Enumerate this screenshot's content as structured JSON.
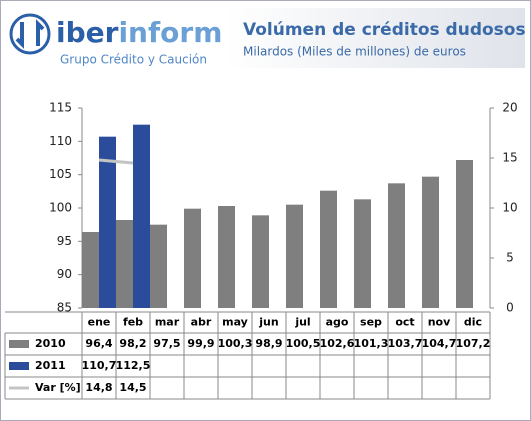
{
  "header": {
    "logo_iber": "iber",
    "logo_inform": "inform",
    "tagline": "Grupo Crédito y Caución"
  },
  "chart_data": {
    "type": "bar",
    "title": "Volúmen de créditos dudosos",
    "subtitle": "Milardos (Miles de millones) de euros",
    "categories": [
      "ene",
      "feb",
      "mar",
      "abr",
      "may",
      "jun",
      "jul",
      "ago",
      "sep",
      "oct",
      "nov",
      "dic"
    ],
    "series": [
      {
        "name": "2010",
        "color": "#7f7f7f",
        "values": [
          96.4,
          98.2,
          97.5,
          99.9,
          100.3,
          98.9,
          100.5,
          102.6,
          101.3,
          103.7,
          104.7,
          107.2
        ],
        "value_labels": [
          "96,4",
          "98,2",
          "97,5",
          "99,9",
          "100,3",
          "98,9",
          "100,5",
          "102,6",
          "101,3",
          "103,7",
          "104,7",
          "107,2"
        ]
      },
      {
        "name": "2011",
        "color": "#2b4c9b",
        "values": [
          110.7,
          112.5,
          null,
          null,
          null,
          null,
          null,
          null,
          null,
          null,
          null,
          null
        ],
        "value_labels": [
          "110,7",
          "112,5",
          null,
          null,
          null,
          null,
          null,
          null,
          null,
          null,
          null,
          null
        ]
      },
      {
        "name": "Var [%]",
        "color": "#c4c4c4",
        "axis": "y2",
        "type": "line",
        "values": [
          14.8,
          14.5,
          null,
          null,
          null,
          null,
          null,
          null,
          null,
          null,
          null,
          null
        ],
        "value_labels": [
          "14,8",
          "14,5",
          null,
          null,
          null,
          null,
          null,
          null,
          null,
          null,
          null,
          null
        ]
      }
    ],
    "ylim": [
      85,
      115
    ],
    "yticks": [
      85,
      90,
      95,
      100,
      105,
      110,
      115
    ],
    "y2lim": [
      0,
      20
    ],
    "y2ticks": [
      0,
      5,
      10,
      15,
      20
    ]
  }
}
